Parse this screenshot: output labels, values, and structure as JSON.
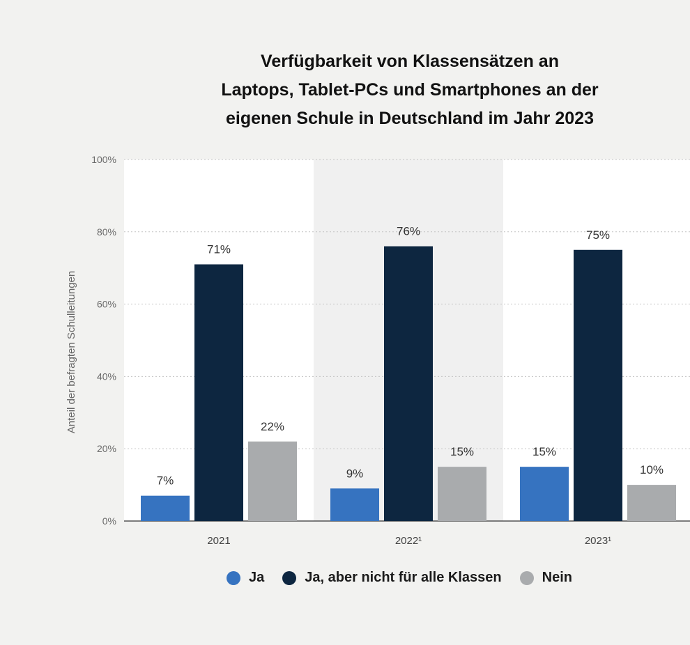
{
  "chart_data": {
    "type": "bar",
    "title_lines": [
      "Verfügbarkeit von Klassensätzen an",
      "Laptops, Tablet-PCs und Smartphones an der",
      "eigenen Schule in Deutschland im Jahr 2023"
    ],
    "categories": [
      "2021",
      "2022¹",
      "2023¹"
    ],
    "series": [
      {
        "name": "Ja",
        "color": "#3673c0",
        "values": [
          7,
          9,
          15
        ],
        "labels": [
          "7%",
          "9%",
          "15%"
        ]
      },
      {
        "name": "Ja, aber nicht für alle Klassen",
        "color": "#0d2640",
        "values": [
          71,
          76,
          75
        ],
        "labels": [
          "71%",
          "76%",
          "75%"
        ]
      },
      {
        "name": "Nein",
        "color": "#a9abad",
        "values": [
          22,
          15,
          10
        ],
        "labels": [
          "22%",
          "15%",
          "10%"
        ]
      }
    ],
    "ylabel": "Anteil der befragten Schulleitungen",
    "ylim": [
      0,
      100
    ],
    "yticks": [
      0,
      20,
      40,
      60,
      80,
      100
    ],
    "ytick_labels": [
      "0%",
      "20%",
      "40%",
      "60%",
      "80%",
      "100%"
    ],
    "grid": true,
    "legend_position": "bottom"
  }
}
